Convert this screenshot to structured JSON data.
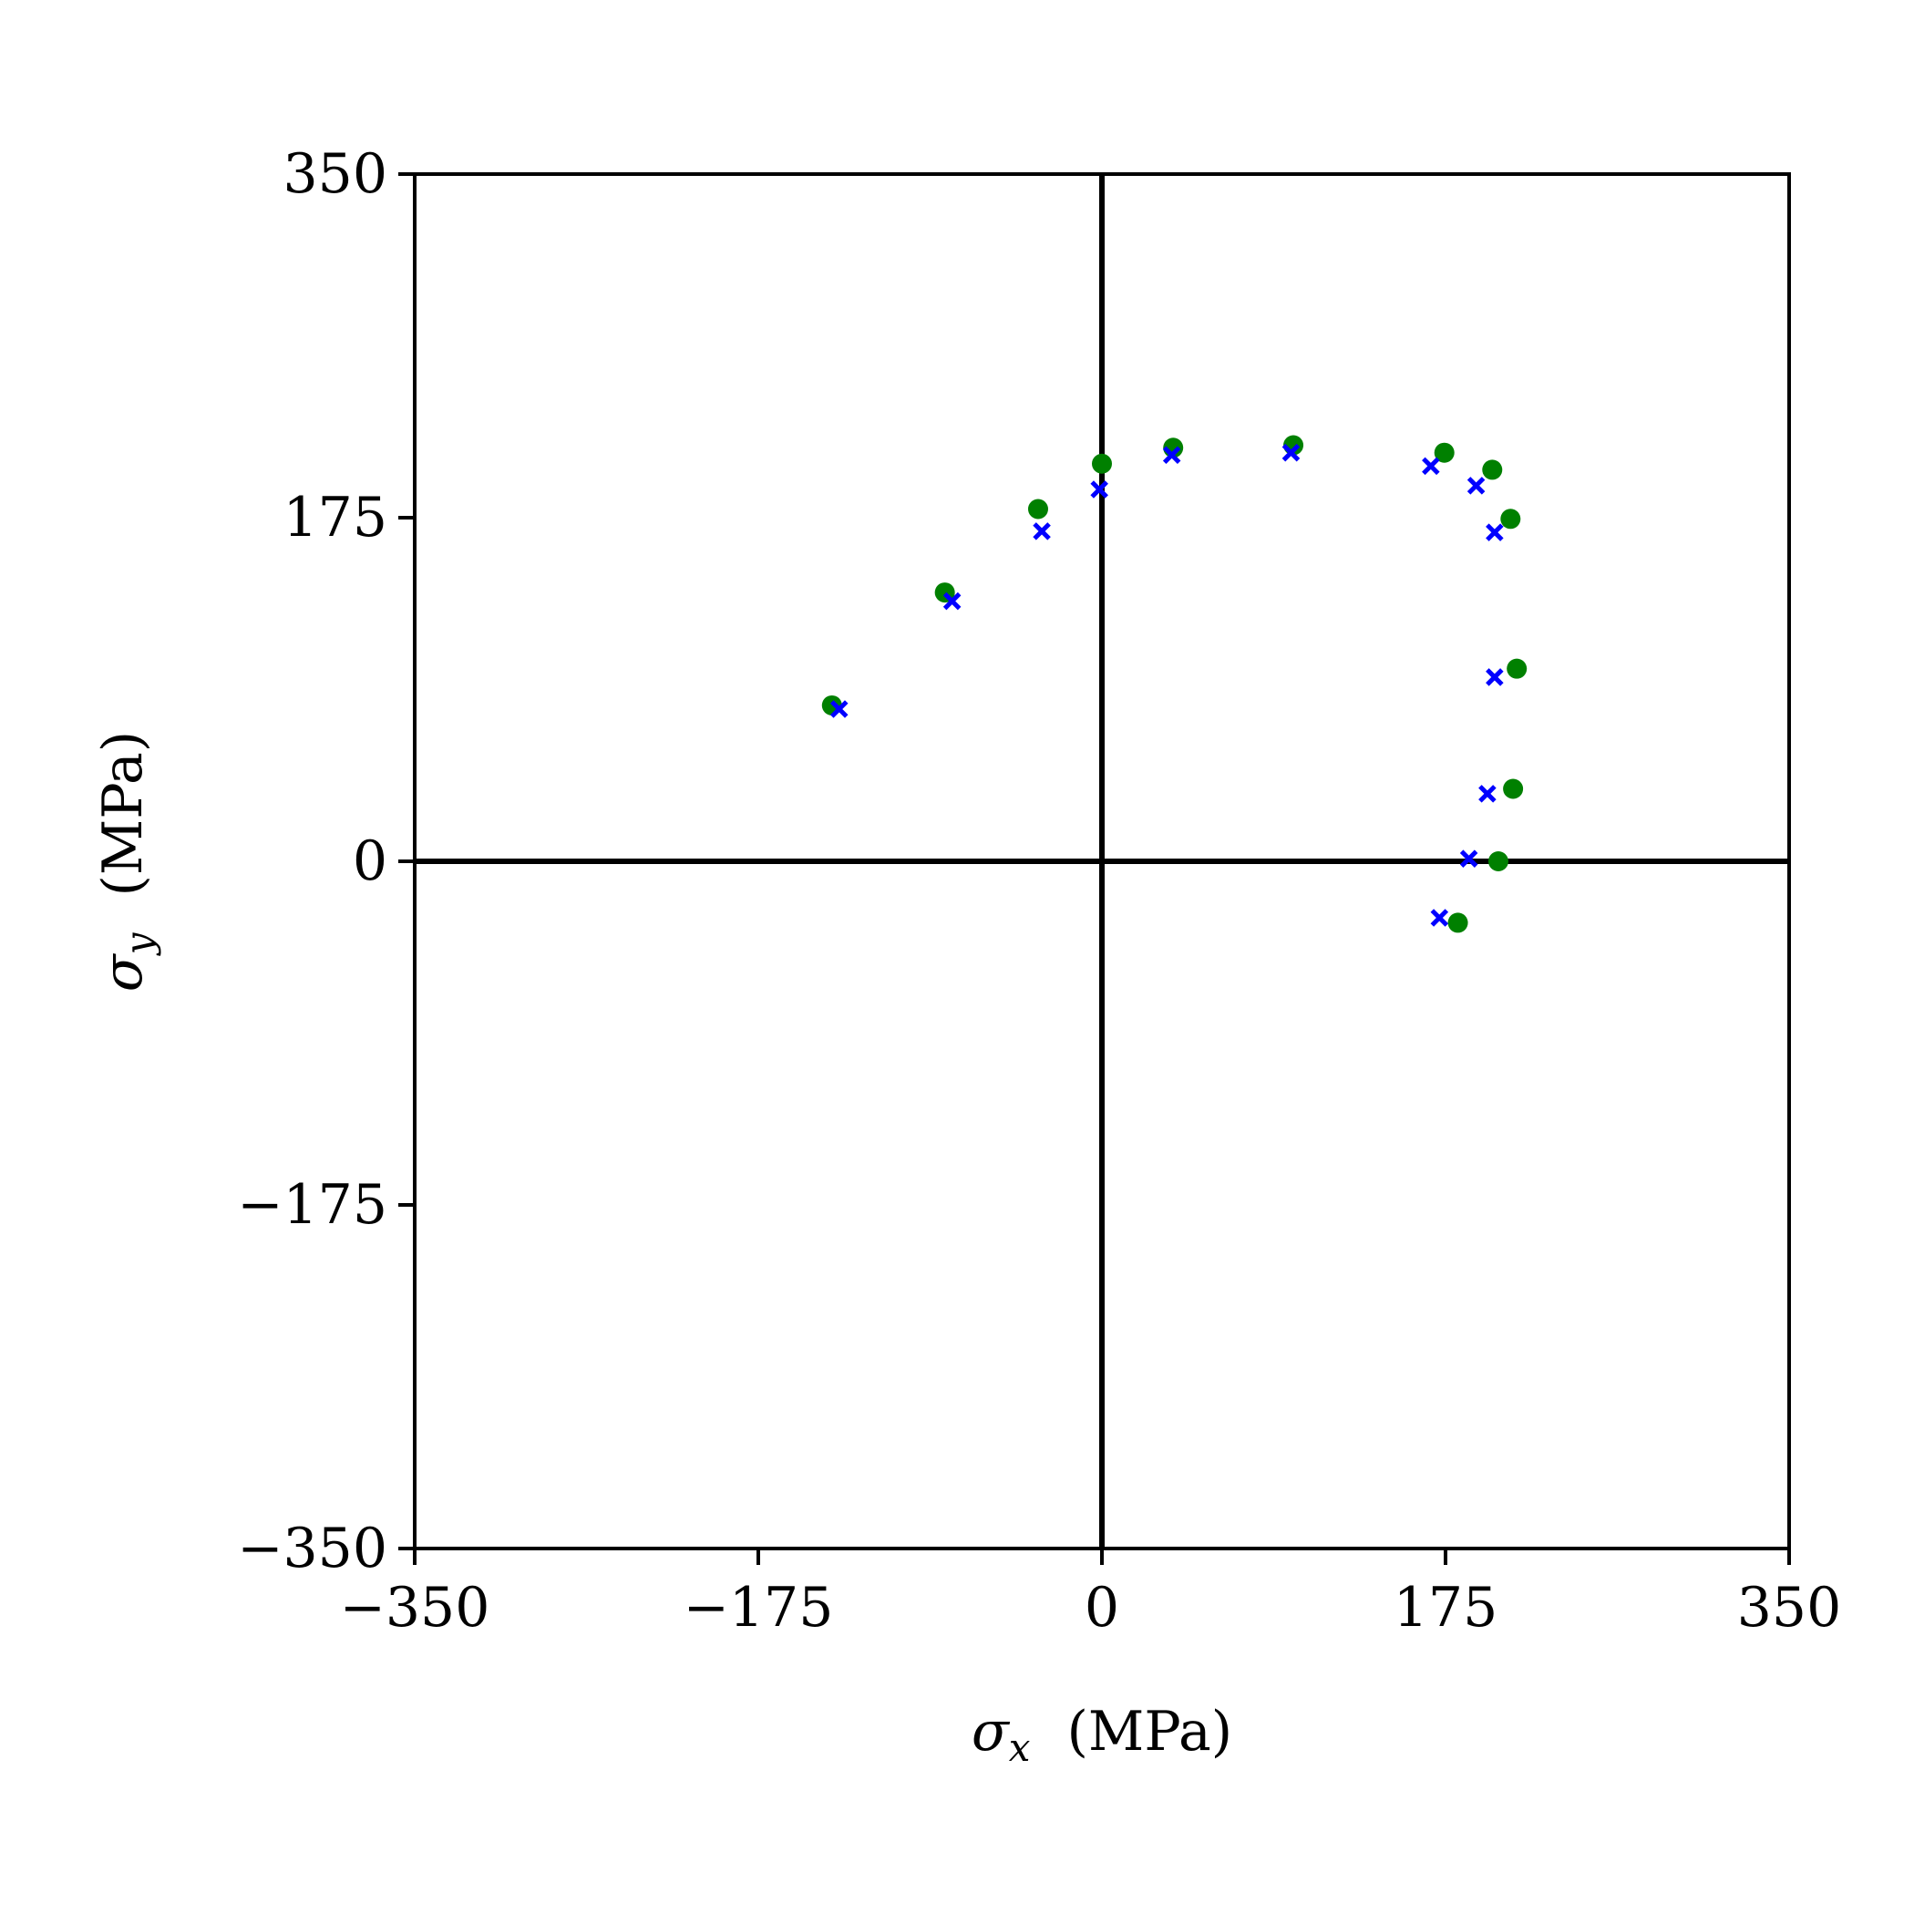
{
  "chart_data": {
    "type": "scatter",
    "xlabel": {
      "symbol": "σ",
      "subscript": "x",
      "unit": "(MPa)"
    },
    "ylabel": {
      "symbol": "σ",
      "subscript": "y",
      "unit": "(MPa)"
    },
    "xlim": [
      -350,
      350
    ],
    "ylim": [
      -350,
      350
    ],
    "xticks": [
      {
        "value": -350,
        "label": "−350"
      },
      {
        "value": -175,
        "label": "−175"
      },
      0,
      175,
      350
    ],
    "yticks": [
      {
        "value": -350,
        "label": "−350"
      },
      {
        "value": -175,
        "label": "−175"
      },
      0,
      175,
      350
    ],
    "zero_lines": true,
    "series": [
      {
        "color": "#008000",
        "marker": "circle",
        "x": [
          -137.5,
          -80,
          -32.5,
          0,
          36.3,
          97.5,
          174.4,
          198.8,
          208.1,
          211.3,
          209.4,
          201.9,
          181.3
        ],
        "values": [
          79.4,
          136.9,
          179.4,
          202.5,
          210.6,
          211.9,
          208.1,
          199.4,
          174.4,
          98.1,
          36.9,
          0,
          -31.3
        ]
      },
      {
        "color": "#0000ff",
        "marker": "x",
        "x": [
          -133.8,
          -76.3,
          -30.6,
          -1.3,
          35.6,
          96.3,
          167.5,
          190.6,
          200,
          200,
          196.3,
          186.9,
          171.9
        ],
        "values": [
          77.5,
          132.5,
          168.1,
          189.4,
          206.9,
          208.1,
          201.3,
          191.3,
          167.5,
          93.8,
          34.4,
          1.3,
          -28.8
        ]
      }
    ]
  }
}
